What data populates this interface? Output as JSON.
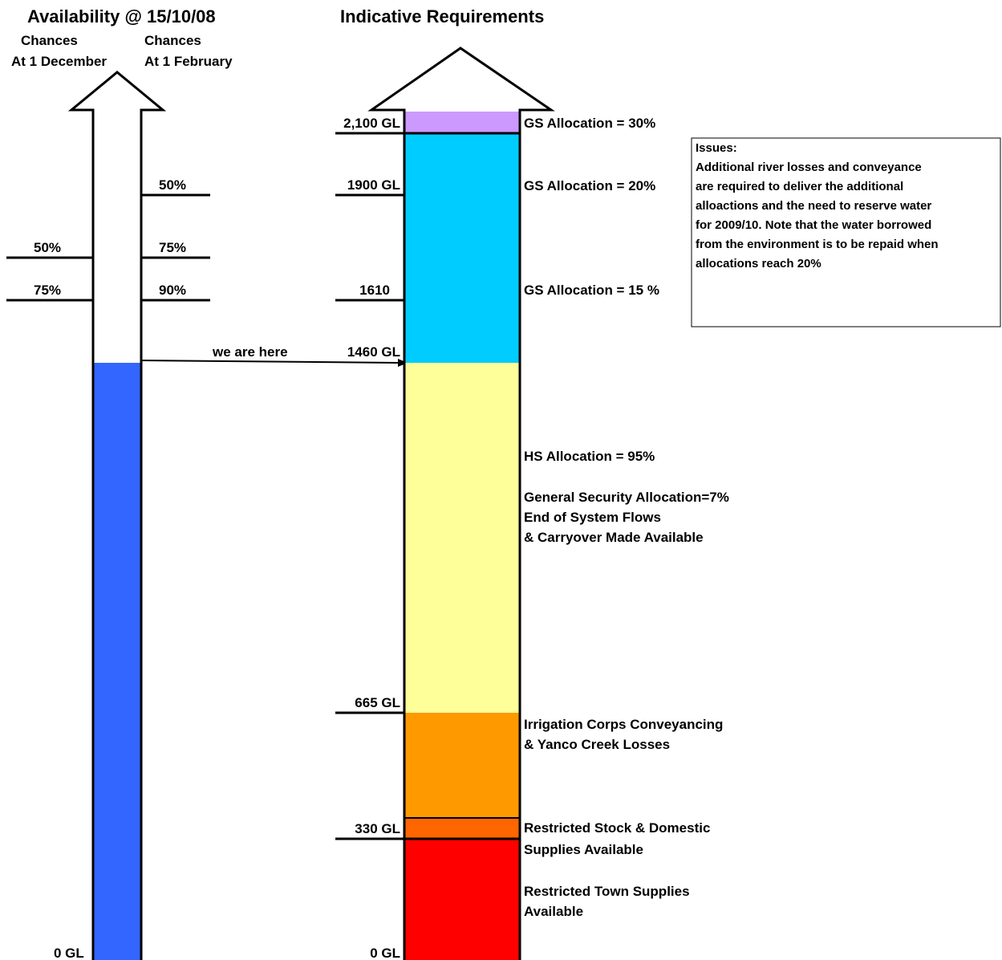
{
  "titles": {
    "availability": "Availability @ 15/10/08",
    "requirements": "Indicative Requirements"
  },
  "availability": {
    "headers": {
      "december_line1": "Chances",
      "december_line2": "At 1 December",
      "february_line1": "Chances",
      "february_line2": "At 1 February"
    },
    "level_marks": {
      "feb_50": "50%",
      "dec_50": "50%",
      "feb_75": "75%",
      "dec_75": "75%",
      "feb_90": "90%"
    },
    "current_level_label": "we are here",
    "bottom_label": "0 GL",
    "fill_color": "#3366FF",
    "current_value_gl": 1460
  },
  "requirements": {
    "scale_labels": {
      "v2100": "2,100 GL",
      "v1900": "1900 GL",
      "v1610": "1610",
      "v1460": "1460 GL",
      "v665": "665 GL",
      "v330": "330 GL",
      "v0": "0 GL"
    },
    "segments": [
      {
        "name": "town-supplies",
        "color": "#FF0000"
      },
      {
        "name": "stock-domestic",
        "color": "#FF6600"
      },
      {
        "name": "conveyancing",
        "color": "#FF9900"
      },
      {
        "name": "hs-allocation",
        "color": "#FFFF99"
      },
      {
        "name": "gs-allocation",
        "color": "#00CCFF"
      },
      {
        "name": "gs-30",
        "color": "#CC99FF"
      }
    ],
    "descriptions": {
      "gs30": "GS Allocation = 30%",
      "gs20": "GS Allocation = 20%",
      "gs15": "GS Allocation = 15 %",
      "hs95": "HS Allocation = 95%",
      "general_line1": "General Security Allocation=7%",
      "general_line2": "End of System Flows",
      "general_line3": "& Carryover Made Available",
      "irrigation_line1": "Irrigation Corps Conveyancing",
      "irrigation_line2": "& Yanco Creek Losses",
      "stock_line1": "Restricted Stock & Domestic",
      "stock_line2": "Supplies Available",
      "town_line1": "Restricted Town Supplies",
      "town_line2": "Available"
    }
  },
  "issues": {
    "heading": "Issues:",
    "lines": [
      "Additional river losses and conveyance",
      "are required to deliver the additional",
      "alloactions  and the need to reserve  water",
      "for 2009/10.  Note that the water borrowed",
      "from the environment is to be repaid when",
      "allocations reach 20%"
    ]
  }
}
